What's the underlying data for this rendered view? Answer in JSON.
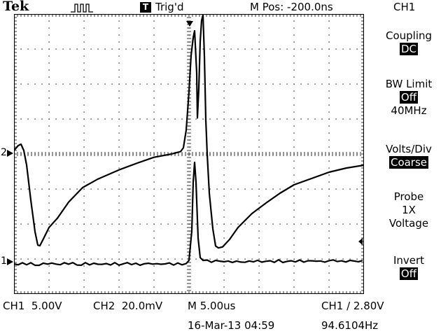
{
  "header": {
    "brand": "Tek",
    "trigger_icon_letter": "T",
    "trigger_status": "Trig'd",
    "m_pos": "M Pos: -200.0ns",
    "channel": "CH1"
  },
  "side_menu": {
    "coupling": {
      "label": "Coupling",
      "value": "DC"
    },
    "bw_limit": {
      "label": "BW Limit",
      "value": "Off",
      "note": "40MHz"
    },
    "volts_div": {
      "label": "Volts/Div",
      "value": "Coarse"
    },
    "probe": {
      "label": "Probe",
      "value1": "1X",
      "value2": "Voltage"
    },
    "invert": {
      "label": "Invert",
      "value": "Off"
    }
  },
  "footer": {
    "ch1_label": "CH1",
    "ch1_scale": "5.00V",
    "ch2_label": "CH2",
    "ch2_scale": "20.0mV",
    "timebase": "M 5.00us",
    "trigger": "CH1 ∕ 2.80V",
    "date": "16-Mar-13 04:59",
    "frequency": "94.6104Hz"
  },
  "markers": {
    "ch1": "2",
    "ch2": "1"
  },
  "colors": {
    "background": "#ffffff",
    "trace": "#000000"
  }
}
